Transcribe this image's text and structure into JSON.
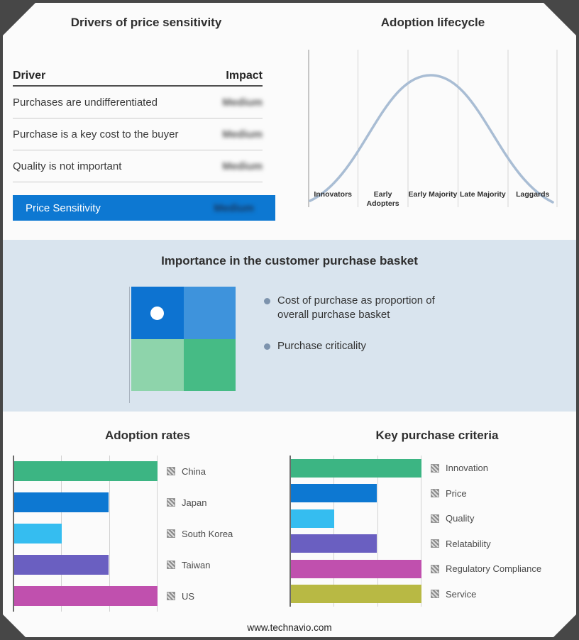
{
  "drivers_table": {
    "title": "Drivers of price sensitivity",
    "columns": {
      "driver": "Driver",
      "impact": "Impact"
    },
    "rows": [
      {
        "driver": "Purchases are undifferentiated",
        "impact": "Medium"
      },
      {
        "driver": "Purchase is a key cost to the buyer",
        "impact": "Medium"
      },
      {
        "driver": "Quality is not important",
        "impact": "Medium"
      }
    ],
    "summary_label": "Price Sensitivity",
    "summary_impact": "Medium",
    "accent_color": "#0d78d2"
  },
  "adoption_lifecycle": {
    "title": "Adoption lifecycle",
    "stages": [
      "Innovators",
      "Early Adopters",
      "Early Majority",
      "Late Majority",
      "Laggards"
    ],
    "curve_color": "#a9bdd4"
  },
  "purchase_basket": {
    "title": "Importance in the customer purchase basket",
    "bullets": [
      "Cost of purchase as proportion of overall purchase basket",
      "Purchase criticality"
    ],
    "matrix_colors": [
      "#0d73d1",
      "#3e93dc",
      "#8ed4ab",
      "#46bb85"
    ],
    "highlight": "white dot in top-left quadrant"
  },
  "footer": {
    "url": "www.technavio.com"
  },
  "chart_data": [
    {
      "id": "lifecycle",
      "type": "line",
      "title": "Adoption lifecycle",
      "categories": [
        "Innovators",
        "Early Adopters",
        "Early Majority",
        "Late Majority",
        "Laggards"
      ],
      "values": [
        15,
        62,
        100,
        62,
        15
      ],
      "shape": "bell curve (normal distribution) peaking at Early Majority",
      "ylabel": "",
      "xlabel": "",
      "grid": true,
      "legend": "none"
    },
    {
      "id": "adoption-rates",
      "type": "bar",
      "orientation": "horizontal",
      "title": "Adoption rates",
      "categories": [
        "China",
        "Japan",
        "South Korea",
        "Taiwan",
        "US"
      ],
      "values": [
        100,
        66,
        33,
        66,
        100
      ],
      "unit": "percent of axis (estimated from gridlines, axis unlabeled)",
      "colors": [
        "#3cb583",
        "#0d78d2",
        "#35bdf0",
        "#6a5fc1",
        "#c050ae"
      ],
      "grid": true,
      "legend_position": "right"
    },
    {
      "id": "key-purchase-criteria",
      "type": "bar",
      "orientation": "horizontal",
      "title": "Key purchase criteria",
      "categories": [
        "Innovation",
        "Price",
        "Quality",
        "Relatability",
        "Regulatory Compliance",
        "Service"
      ],
      "values": [
        100,
        66,
        33,
        66,
        100,
        100
      ],
      "unit": "percent of axis (estimated from gridlines, axis unlabeled)",
      "colors": [
        "#3cb583",
        "#0d78d2",
        "#35bdf0",
        "#6a5fc1",
        "#c050ae",
        "#b8b944"
      ],
      "grid": true,
      "legend_position": "right"
    }
  ]
}
